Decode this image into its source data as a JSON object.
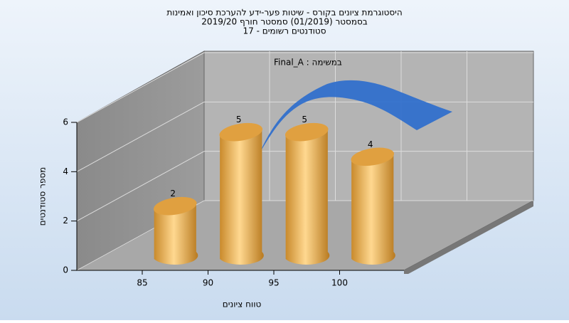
{
  "chart_data": {
    "type": "histogram",
    "title": [
      "היסטוגרמת ציונים בקורס - שיטות פער-ידע להערכת סיכון ואמינות",
      "בסמסטר  (01/2019)  סמסטר חורף 2019/20",
      "סטודנטים רשומים - 17"
    ],
    "annotation": "Final_A : במשימה",
    "x_label": "טווח ציונים",
    "y_label": "מספר סטודנטים",
    "bins": [
      85,
      90,
      95,
      100,
      105
    ],
    "values": [
      2,
      5,
      5,
      4
    ],
    "color": "#e0a040",
    "xlim": [
      80,
      105
    ],
    "xticks": [
      85,
      90,
      95,
      100
    ],
    "ylim": [
      0,
      6
    ],
    "yticks": [
      0,
      2,
      4,
      6
    ],
    "grid": true
  }
}
